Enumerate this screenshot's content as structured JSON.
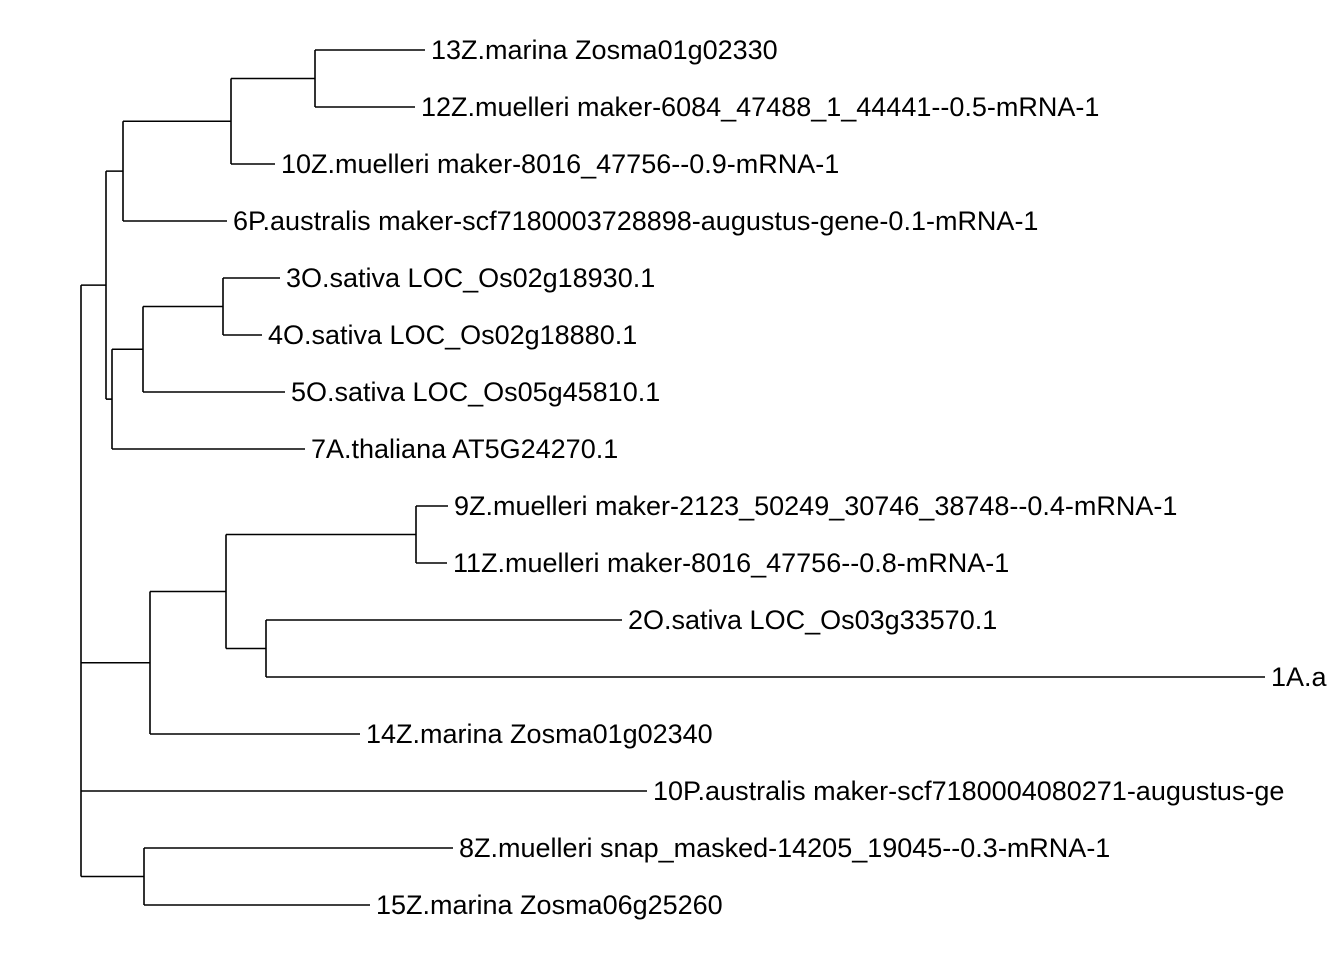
{
  "tree": {
    "tips": [
      {
        "id": "t13",
        "label": "13Z.marina Zosma01g02330"
      },
      {
        "id": "t12",
        "label": "12Z.muelleri maker-6084_47488_1_44441--0.5-mRNA-1"
      },
      {
        "id": "t10z",
        "label": "10Z.muelleri maker-8016_47756--0.9-mRNA-1"
      },
      {
        "id": "t6",
        "label": "6P.australis maker-scf7180003728898-augustus-gene-0.1-mRNA-1"
      },
      {
        "id": "t3",
        "label": "3O.sativa LOC_Os02g18930.1"
      },
      {
        "id": "t4",
        "label": "4O.sativa LOC_Os02g18880.1"
      },
      {
        "id": "t5",
        "label": "5O.sativa LOC_Os05g45810.1"
      },
      {
        "id": "t7",
        "label": "7A.thaliana AT5G24270.1"
      },
      {
        "id": "t9",
        "label": "9Z.muelleri maker-2123_50249_30746_38748--0.4-mRNA-1"
      },
      {
        "id": "t11",
        "label": "11Z.muelleri maker-8016_47756--0.8-mRNA-1"
      },
      {
        "id": "t2",
        "label": "2O.sativa LOC_Os03g33570.1"
      },
      {
        "id": "t1",
        "label": "1A.a"
      },
      {
        "id": "t14",
        "label": "14Z.marina Zosma01g02340"
      },
      {
        "id": "t10p",
        "label": "10P.australis maker-scf7180004080271-augustus-ge"
      },
      {
        "id": "t8",
        "label": "8Z.muelleri snap_masked-14205_19045--0.3-mRNA-1"
      },
      {
        "id": "t15",
        "label": "15Z.marina Zosma06g25260"
      }
    ],
    "topology": {
      "children": [
        {
          "children": [
            {
              "children": [
                {
                  "children": [
                    {
                      "children": [
                        {
                          "tip": "t13"
                        },
                        {
                          "tip": "t12"
                        }
                      ]
                    },
                    {
                      "tip": "t10z"
                    }
                  ]
                },
                {
                  "tip": "t6"
                }
              ]
            },
            {
              "children": [
                {
                  "children": [
                    {
                      "children": [
                        {
                          "tip": "t3"
                        },
                        {
                          "tip": "t4"
                        }
                      ]
                    },
                    {
                      "tip": "t5"
                    }
                  ]
                },
                {
                  "tip": "t7"
                }
              ]
            }
          ]
        },
        {
          "children": [
            {
              "children": [
                {
                  "children": [
                    {
                      "tip": "t9"
                    },
                    {
                      "tip": "t11"
                    }
                  ]
                },
                {
                  "children": [
                    {
                      "tip": "t2"
                    },
                    {
                      "tip": "t1"
                    }
                  ]
                }
              ]
            },
            {
              "tip": "t14"
            }
          ]
        },
        {
          "tip": "t10p"
        },
        {
          "children": [
            {
              "tip": "t8"
            },
            {
              "tip": "t15"
            }
          ]
        }
      ]
    }
  }
}
